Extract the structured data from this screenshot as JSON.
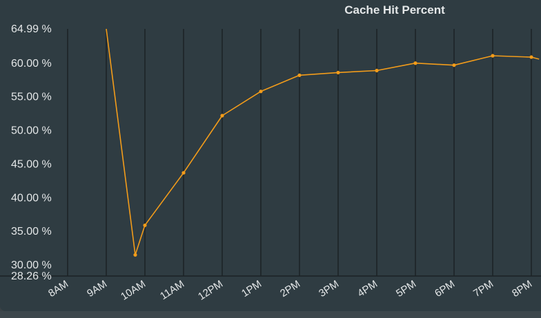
{
  "chart_data": {
    "type": "line",
    "title": "Cache Hit Percent",
    "xlabel": "",
    "ylabel": "",
    "x_tick_labels": [
      "8AM",
      "9AM",
      "10AM",
      "11AM",
      "12PM",
      "1PM",
      "2PM",
      "3PM",
      "4PM",
      "5PM",
      "6PM",
      "7PM",
      "8PM"
    ],
    "y_tick_labels": [
      "64.99 %",
      "60.00 %",
      "55.00 %",
      "50.00 %",
      "45.00 %",
      "40.00 %",
      "35.00 %",
      "30.00 %",
      "28.26 %"
    ],
    "y_tick_values": [
      64.99,
      60.0,
      55.0,
      50.0,
      45.0,
      40.0,
      35.0,
      30.0,
      28.26
    ],
    "xlim": [
      8,
      20.2
    ],
    "ylim": [
      28.26,
      64.99
    ],
    "grid": "vertical",
    "series": [
      {
        "name": "",
        "color": "#f39c1a",
        "points": [
          {
            "x": 9.0,
            "y": 64.99
          },
          {
            "x": 9.75,
            "y": 31.4
          },
          {
            "x": 10.0,
            "y": 35.8
          },
          {
            "x": 11.0,
            "y": 43.6
          },
          {
            "x": 12.0,
            "y": 52.1
          },
          {
            "x": 13.0,
            "y": 55.7
          },
          {
            "x": 14.0,
            "y": 58.1
          },
          {
            "x": 15.0,
            "y": 58.5
          },
          {
            "x": 16.0,
            "y": 58.8
          },
          {
            "x": 17.0,
            "y": 59.9
          },
          {
            "x": 18.0,
            "y": 59.6
          },
          {
            "x": 19.0,
            "y": 61.0
          },
          {
            "x": 20.0,
            "y": 60.8
          },
          {
            "x": 20.2,
            "y": 60.5
          }
        ]
      }
    ]
  },
  "colors": {
    "background": "#2f3c42",
    "grid": "#1c2225",
    "text": "#e4e7e8",
    "line": "#f39c1a"
  }
}
